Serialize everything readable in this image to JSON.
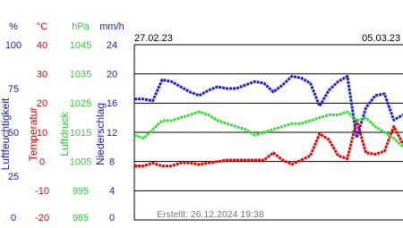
{
  "chart_data": {
    "type": "line",
    "x_labels": [
      "27.02.23",
      "05.03.23"
    ],
    "footer": "Erstellt: 26.12.2024 19:38",
    "grid": true,
    "axes": [
      {
        "unit": "%",
        "label": "Luftfeuchtigkeit",
        "color": "#1a1ad0",
        "ylim": [
          0,
          100
        ],
        "yticks": [
          0,
          25,
          50,
          75,
          100
        ]
      },
      {
        "unit": "°C",
        "label": "Temperatur",
        "color": "#e00000",
        "ylim": [
          -20,
          40
        ],
        "yticks": [
          -20,
          -10,
          0,
          10,
          20,
          30,
          40
        ]
      },
      {
        "unit": "hPa",
        "label": "Luftdruck",
        "color": "#33cc33",
        "ylim": [
          985,
          1045
        ],
        "yticks": [
          985,
          995,
          1005,
          1015,
          1025,
          1035,
          1045
        ]
      },
      {
        "unit": "mm/h",
        "label": "Niederschlag",
        "color": "#1a1ad0",
        "ylim": [
          0,
          24
        ],
        "yticks": [
          0,
          4,
          8,
          12,
          16,
          20,
          24
        ]
      }
    ],
    "series": [
      {
        "axis": 0,
        "color": "#1a1ae0",
        "values": [
          69,
          69,
          68,
          80,
          79,
          76,
          73,
          71,
          74,
          76,
          75,
          75,
          77,
          79,
          78,
          73,
          77,
          82,
          81,
          78,
          65,
          74,
          79,
          82,
          47,
          64,
          71,
          72,
          57,
          60
        ]
      },
      {
        "axis": 1,
        "color": "#e80000",
        "values": [
          -1.5,
          -1.5,
          -0.5,
          -1.5,
          -1.5,
          -0.5,
          -0.5,
          -1,
          -0.5,
          0,
          0.5,
          0.5,
          0.5,
          0.5,
          0.5,
          3,
          0.5,
          -1,
          0.5,
          2,
          9.5,
          7.5,
          2,
          1,
          14,
          3,
          2.5,
          3.5,
          12,
          6
        ]
      },
      {
        "axis": 2,
        "color": "#33e033",
        "values": [
          1014,
          1013,
          1016,
          1019,
          1019,
          1020,
          1021,
          1022,
          1021,
          1019,
          1018,
          1017,
          1016,
          1014,
          1015,
          1016,
          1017,
          1018,
          1018,
          1019,
          1020,
          1021,
          1021,
          1022,
          1019,
          1020,
          1017,
          1015,
          1013,
          1010
        ]
      }
    ]
  }
}
